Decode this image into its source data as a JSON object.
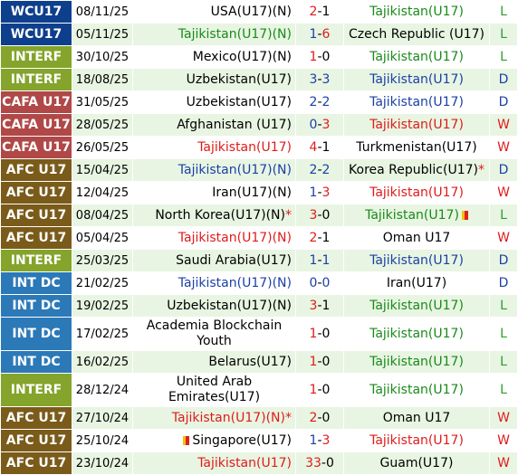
{
  "colors": {
    "WCU17": "#0e3f8c",
    "INTERF": "#84a42c",
    "CAFA U17": "#b04848",
    "AFC U17": "#7a5b1a",
    "INT DC": "#2c79b8"
  },
  "matches": [
    {
      "comp": "WCU17",
      "date": "08/11/25",
      "home": "USA(U17)(N)",
      "home_color": "black",
      "hs": "2",
      "as": "1",
      "hs_color": "red",
      "as_color": "black",
      "away": "Tajikistan(U17)",
      "away_color": "green",
      "result": "L",
      "tall": false
    },
    {
      "comp": "WCU17",
      "date": "05/11/25",
      "home": "Tajikistan(U17)(N)",
      "home_color": "green",
      "hs": "1",
      "as": "6",
      "hs_color": "blue",
      "as_color": "red",
      "away": "Czech Republic (U17)",
      "away_color": "black",
      "result": "L",
      "tall": false
    },
    {
      "comp": "INTERF",
      "date": "30/10/25",
      "home": "Mexico(U17)(N)",
      "home_color": "black",
      "hs": "1",
      "as": "0",
      "hs_color": "red",
      "as_color": "black",
      "away": "Tajikistan(U17)",
      "away_color": "green",
      "result": "L",
      "tall": false
    },
    {
      "comp": "INTERF",
      "date": "18/08/25",
      "home": "Uzbekistan(U17)",
      "home_color": "black",
      "hs": "3",
      "as": "3",
      "hs_color": "blue",
      "as_color": "blue",
      "away": "Tajikistan(U17)",
      "away_color": "blue",
      "result": "D",
      "tall": false
    },
    {
      "comp": "CAFA U17",
      "date": "31/05/25",
      "home": "Uzbekistan(U17)",
      "home_color": "black",
      "hs": "2",
      "as": "2",
      "hs_color": "blue",
      "as_color": "blue",
      "away": "Tajikistan(U17)",
      "away_color": "blue",
      "result": "D",
      "tall": false
    },
    {
      "comp": "CAFA U17",
      "date": "28/05/25",
      "home": "Afghanistan (U17)",
      "home_color": "black",
      "hs": "0",
      "as": "3",
      "hs_color": "blue",
      "as_color": "red",
      "away": "Tajikistan(U17)",
      "away_color": "red",
      "result": "W",
      "tall": false
    },
    {
      "comp": "CAFA U17",
      "date": "26/05/25",
      "home": "Tajikistan(U17)",
      "home_color": "red",
      "hs": "4",
      "as": "1",
      "hs_color": "red",
      "as_color": "black",
      "away": "Turkmenistan(U17)",
      "away_color": "black",
      "result": "W",
      "tall": false
    },
    {
      "comp": "AFC U17",
      "date": "15/04/25",
      "home": "Tajikistan(U17)(N)",
      "home_color": "blue",
      "hs": "2",
      "as": "2",
      "hs_color": "blue",
      "as_color": "blue",
      "away": "Korea Republic(U17)",
      "away_color": "black",
      "away_mark": "*",
      "result": "D",
      "tall": false
    },
    {
      "comp": "AFC U17",
      "date": "12/04/25",
      "home": "Iran(U17)(N)",
      "home_color": "black",
      "hs": "1",
      "as": "3",
      "hs_color": "blue",
      "as_color": "red",
      "away": "Tajikistan(U17)",
      "away_color": "red",
      "result": "W",
      "tall": false
    },
    {
      "comp": "AFC U17",
      "date": "08/04/25",
      "home": "North Korea(U17)(N)",
      "home_color": "black",
      "home_mark": "*",
      "hs": "3",
      "as": "0",
      "hs_color": "red",
      "as_color": "black",
      "away": "Tajikistan(U17)",
      "away_color": "green",
      "away_card": true,
      "result": "L",
      "tall": false
    },
    {
      "comp": "AFC U17",
      "date": "05/04/25",
      "home": "Tajikistan(U17)(N)",
      "home_color": "red",
      "hs": "2",
      "as": "1",
      "hs_color": "red",
      "as_color": "black",
      "away": "Oman U17",
      "away_color": "black",
      "result": "W",
      "tall": false
    },
    {
      "comp": "INTERF",
      "date": "25/03/25",
      "home": "Saudi Arabia(U17)",
      "home_color": "black",
      "hs": "1",
      "as": "1",
      "hs_color": "blue",
      "as_color": "blue",
      "away": "Tajikistan(U17)",
      "away_color": "blue",
      "result": "D",
      "tall": false
    },
    {
      "comp": "INT DC",
      "date": "21/02/25",
      "home": "Tajikistan(U17)(N)",
      "home_color": "blue",
      "hs": "0",
      "as": "0",
      "hs_color": "blue",
      "as_color": "blue",
      "away": "Iran(U17)",
      "away_color": "black",
      "result": "D",
      "tall": false
    },
    {
      "comp": "INT DC",
      "date": "19/02/25",
      "home": "Uzbekistan(U17)(N)",
      "home_color": "black",
      "hs": "3",
      "as": "1",
      "hs_color": "red",
      "as_color": "black",
      "away": "Tajikistan(U17)",
      "away_color": "green",
      "result": "L",
      "tall": false
    },
    {
      "comp": "INT DC",
      "date": "17/02/25",
      "home": "Academia Blockchain Youth",
      "home_color": "black",
      "hs": "1",
      "as": "0",
      "hs_color": "red",
      "as_color": "black",
      "away": "Tajikistan(U17)",
      "away_color": "green",
      "result": "L",
      "tall": true
    },
    {
      "comp": "INT DC",
      "date": "16/02/25",
      "home": "Belarus(U17)",
      "home_color": "black",
      "hs": "1",
      "as": "0",
      "hs_color": "red",
      "as_color": "black",
      "away": "Tajikistan(U17)",
      "away_color": "green",
      "result": "L",
      "tall": false
    },
    {
      "comp": "INTERF",
      "date": "28/12/24",
      "home": "United Arab Emirates(U17)",
      "home_color": "black",
      "hs": "1",
      "as": "0",
      "hs_color": "red",
      "as_color": "black",
      "away": "Tajikistan(U17)",
      "away_color": "green",
      "result": "L",
      "tall": true
    },
    {
      "comp": "AFC U17",
      "date": "27/10/24",
      "home": "Tajikistan(U17)(N)",
      "home_color": "red",
      "home_mark": "*",
      "hs": "2",
      "as": "0",
      "hs_color": "red",
      "as_color": "black",
      "away": "Oman U17",
      "away_color": "black",
      "result": "W",
      "tall": false
    },
    {
      "comp": "AFC U17",
      "date": "25/10/24",
      "home": "Singapore(U17)",
      "home_color": "black",
      "home_card": true,
      "hs": "1",
      "as": "3",
      "hs_color": "blue",
      "as_color": "red",
      "away": "Tajikistan(U17)",
      "away_color": "red",
      "result": "W",
      "tall": false
    },
    {
      "comp": "AFC U17",
      "date": "23/10/24",
      "home": "Tajikistan(U17)",
      "home_color": "red",
      "hs": "33",
      "as": "0",
      "hs_color": "red",
      "as_color": "black",
      "away": "Guam(U17)",
      "away_color": "black",
      "result": "W",
      "tall": false
    }
  ]
}
